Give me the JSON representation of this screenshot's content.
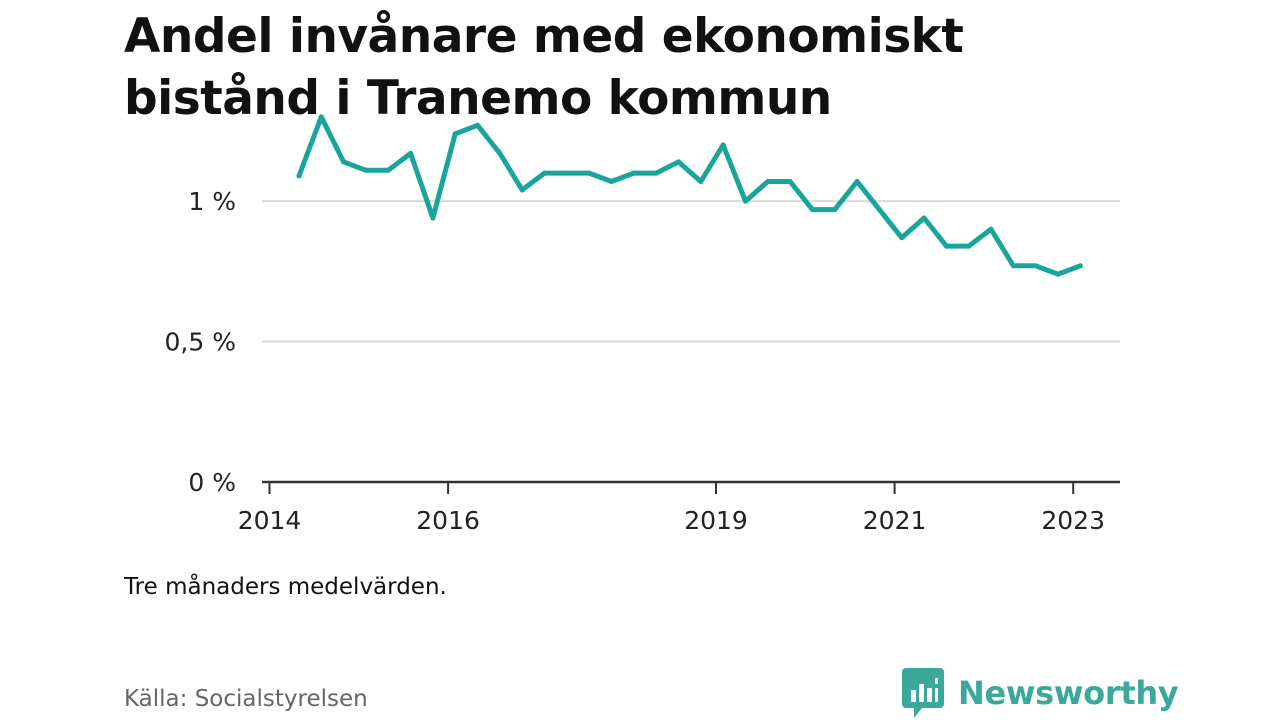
{
  "title": "Andel invånare med ekonomiskt bistånd i Tranemo kommun",
  "note": "Tre månaders medelvärden.",
  "source": "Källa: Socialstyrelsen",
  "brand": {
    "name": "Newsworthy",
    "color": "#3aa89a"
  },
  "chart_data": {
    "type": "line",
    "title": "Andel invånare med ekonomiskt bistånd i Tranemo kommun",
    "xlabel": "",
    "ylabel": "",
    "xlim": [
      2014,
      2023.5
    ],
    "ylim": [
      0,
      1.2
    ],
    "grid": true,
    "line_color": "#1aa59b",
    "y_ticks": [
      {
        "value": 0,
        "label": "0 %"
      },
      {
        "value": 0.5,
        "label": "0,5 %"
      },
      {
        "value": 1,
        "label": "1 %"
      }
    ],
    "x_ticks": [
      {
        "value": 2014,
        "label": "2014"
      },
      {
        "value": 2016,
        "label": "2016"
      },
      {
        "value": 2019,
        "label": "2019"
      },
      {
        "value": 2021,
        "label": "2021"
      },
      {
        "value": 2023,
        "label": "2023"
      }
    ],
    "series": [
      {
        "values": [
          {
            "x": 2014.33,
            "y": 1.09
          },
          {
            "x": 2014.58,
            "y": 1.3
          },
          {
            "x": 2014.83,
            "y": 1.14
          },
          {
            "x": 2015.08,
            "y": 1.11
          },
          {
            "x": 2015.33,
            "y": 1.11
          },
          {
            "x": 2015.58,
            "y": 1.17
          },
          {
            "x": 2015.83,
            "y": 0.94
          },
          {
            "x": 2016.08,
            "y": 1.24
          },
          {
            "x": 2016.33,
            "y": 1.27
          },
          {
            "x": 2016.58,
            "y": 1.17
          },
          {
            "x": 2016.83,
            "y": 1.04
          },
          {
            "x": 2017.08,
            "y": 1.1
          },
          {
            "x": 2017.33,
            "y": 1.1
          },
          {
            "x": 2017.58,
            "y": 1.1
          },
          {
            "x": 2017.83,
            "y": 1.07
          },
          {
            "x": 2018.08,
            "y": 1.1
          },
          {
            "x": 2018.33,
            "y": 1.1
          },
          {
            "x": 2018.58,
            "y": 1.14
          },
          {
            "x": 2018.83,
            "y": 1.07
          },
          {
            "x": 2019.08,
            "y": 1.2
          },
          {
            "x": 2019.33,
            "y": 1.0
          },
          {
            "x": 2019.58,
            "y": 1.07
          },
          {
            "x": 2019.83,
            "y": 1.07
          },
          {
            "x": 2020.08,
            "y": 0.97
          },
          {
            "x": 2020.33,
            "y": 0.97
          },
          {
            "x": 2020.58,
            "y": 1.07
          },
          {
            "x": 2020.83,
            "y": 0.97
          },
          {
            "x": 2021.08,
            "y": 0.87
          },
          {
            "x": 2021.33,
            "y": 0.94
          },
          {
            "x": 2021.58,
            "y": 0.84
          },
          {
            "x": 2021.83,
            "y": 0.84
          },
          {
            "x": 2022.08,
            "y": 0.9
          },
          {
            "x": 2022.33,
            "y": 0.77
          },
          {
            "x": 2022.58,
            "y": 0.77
          },
          {
            "x": 2022.83,
            "y": 0.74
          },
          {
            "x": 2023.08,
            "y": 0.77
          }
        ]
      }
    ]
  }
}
